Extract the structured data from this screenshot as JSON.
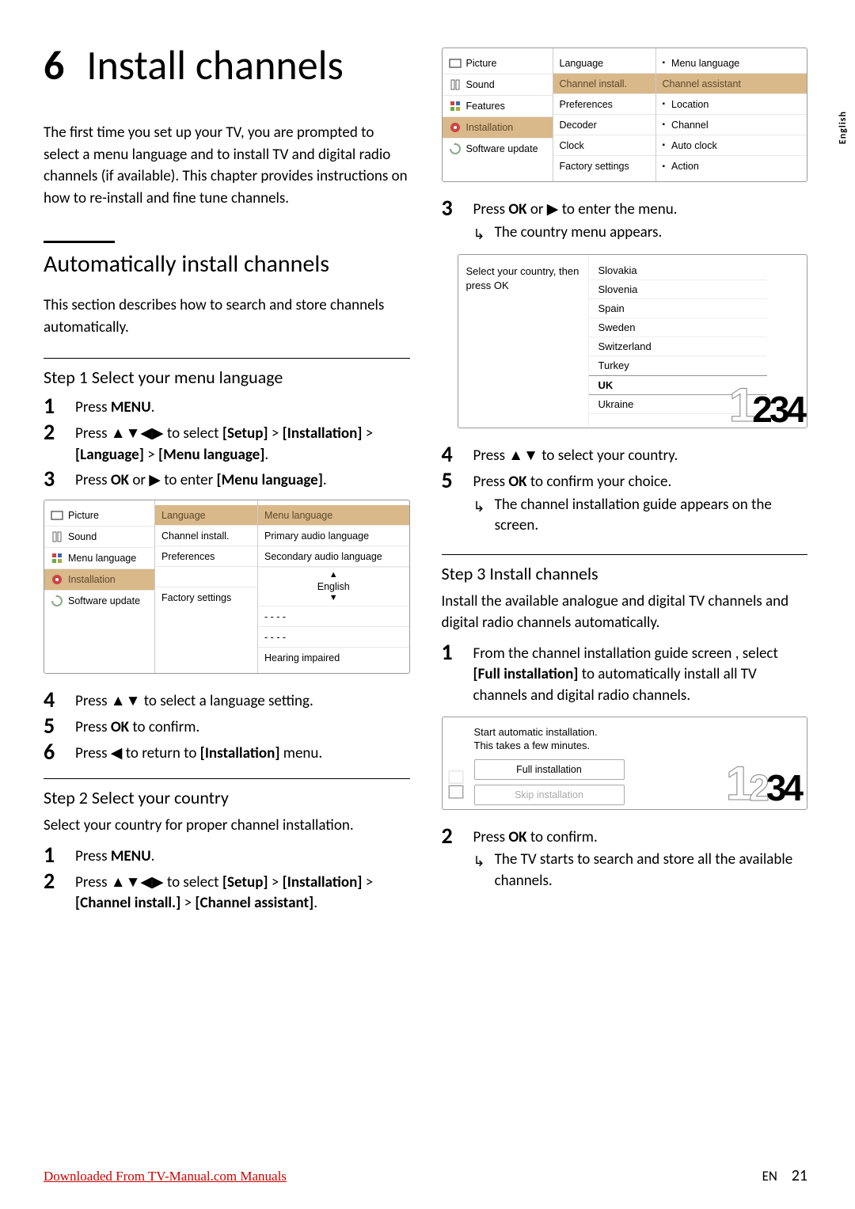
{
  "chapter": {
    "number": "6",
    "title": "Install channels"
  },
  "intro": "The first time you set up your TV, you are prompted to select a menu language and to install TV and digital radio channels (if available). This chapter provides instructions on how to re-install and fine tune channels.",
  "section_auto": {
    "title": "Automatically install channels",
    "desc": "This section describes how to search and store channels automatically."
  },
  "step1": {
    "title": "Step 1 Select your menu language",
    "items": [
      {
        "n": "1",
        "html": "Press <b>MENU</b>."
      },
      {
        "n": "2",
        "html": "Press ▲▼◀▶ to select <b>[Setup]</b> > <b>[Installation]</b> > <b>[Language]</b> > <b>[Menu language]</b>."
      },
      {
        "n": "3",
        "html": "Press <b>OK</b> or ▶ to enter <b>[Menu language]</b>."
      }
    ],
    "post_items": [
      {
        "n": "4",
        "html": "Press ▲▼ to select a language setting."
      },
      {
        "n": "5",
        "html": "Press <b>OK</b> to confirm."
      },
      {
        "n": "6",
        "html": "Press ◀ to return to <b>[Installation]</b> menu."
      }
    ]
  },
  "step2": {
    "title": "Step 2 Select your country",
    "desc": "Select your country for proper channel installation.",
    "items": [
      {
        "n": "1",
        "html": "Press <b>MENU</b>."
      },
      {
        "n": "2",
        "html": "Press ▲▼◀▶ to select <b>[Setup]</b> > <b>[Installation]</b> > <b>[Channel install.]</b> > <b>[Channel assistant]</b>."
      }
    ]
  },
  "step3_head": {
    "n": "3",
    "html": "Press <b>OK</b> or ▶ to enter the menu.",
    "result": "The country menu appears."
  },
  "country_menu": {
    "prompt": "Select your country, then press OK",
    "items": [
      "Slovakia",
      "Slovenia",
      "Spain",
      "Sweden",
      "Switzerland",
      "Turkey",
      "UK",
      "Ukraine"
    ],
    "selected": "UK",
    "big_outline": "1",
    "big_solid": "234"
  },
  "step45": [
    {
      "n": "4",
      "html": "Press ▲▼ to select your country."
    },
    {
      "n": "5",
      "html": "Press <b>OK</b> to confirm your choice.",
      "result": "The channel installation guide appears on the screen."
    }
  ],
  "step3block": {
    "title": "Step 3 Install channels",
    "desc": "Install the available analogue and digital TV channels and digital radio channels automatically.",
    "items": [
      {
        "n": "1",
        "html": "From the channel installation guide screen , select <b>[Full installation]</b> to automatically install all TV channels and digital radio channels."
      }
    ],
    "post_items": [
      {
        "n": "2",
        "html": "Press <b>OK</b> to confirm.",
        "result": "The TV starts to search and store all the available channels."
      }
    ]
  },
  "install_menu": {
    "msg1": "Start automatic installation.",
    "msg2": "This takes a few minutes.",
    "btn1": "Full installation",
    "btn2": "Skip installation",
    "big_outline_left": "1",
    "big_solid": "34",
    "big_outline_mid": "2"
  },
  "tv_menu_top": {
    "col1": [
      "Picture",
      "Sound",
      "Features",
      "Installation",
      "Software update"
    ],
    "col1_highlight": "Installation",
    "col2": [
      "Language",
      "Channel install.",
      "Preferences",
      "Decoder",
      "Clock",
      "Factory settings"
    ],
    "col2_highlight": "Channel install.",
    "col3": [
      {
        "dash": true,
        "label": "Menu language"
      },
      {
        "label": "Channel assistant",
        "hl": true
      },
      {
        "dash": true,
        "label": "Location"
      },
      {
        "dash": true,
        "label": "Channel"
      },
      {
        "dash": true,
        "label": "Auto clock"
      },
      {
        "dash": true,
        "label": "Action"
      }
    ]
  },
  "tv_menu_lang": {
    "col1": [
      "Picture",
      "Sound",
      "Menu language",
      "Installation",
      "Software update"
    ],
    "col1_highlight": "Installation",
    "col2": [
      "Language",
      "Channel install.",
      "Preferences",
      "",
      "Factory settings"
    ],
    "col2_highlight": "Language",
    "col3": [
      "Menu language",
      "Primary audio language",
      "Secondary audio language"
    ],
    "col3_highlight": "Menu language",
    "col3_lang_value": "English",
    "col3_tail": [
      "- - - -",
      "- - - -",
      "Hearing impaired"
    ]
  },
  "side_tab": "English",
  "footer": {
    "link": "Downloaded From TV-Manual.com Manuals",
    "lang": "EN",
    "page": "21"
  },
  "colors": {
    "highlight_bg": "#d9b88a",
    "highlight_fg": "#5c4a2e",
    "border": "#999999",
    "footer_link": "#cc0000"
  }
}
